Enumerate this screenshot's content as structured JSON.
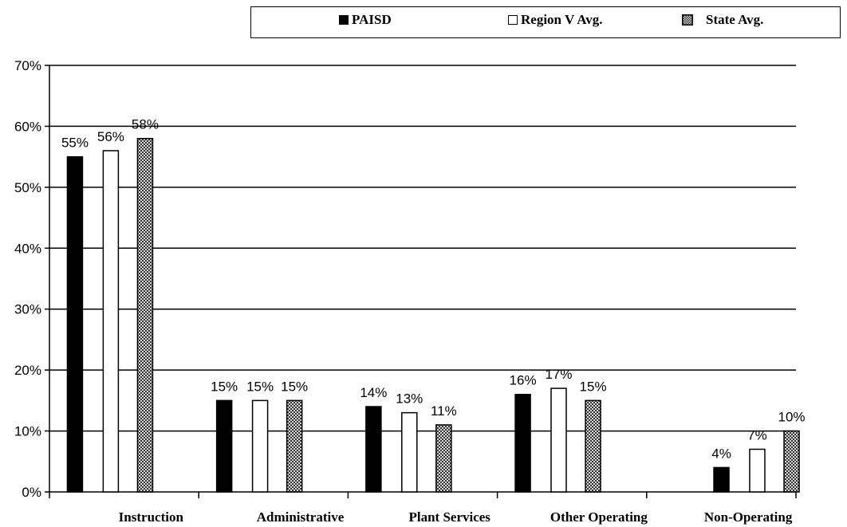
{
  "chart_data": {
    "type": "bar",
    "categories": [
      "Instruction",
      "Administrative",
      "Plant Services",
      "Other Operating",
      "Non-Operating"
    ],
    "series": [
      {
        "name": "PAISD",
        "values": [
          55,
          15,
          14,
          16,
          4
        ],
        "labels": [
          "55%",
          "15%",
          "14%",
          "16%",
          "4%"
        ],
        "color": "#000000",
        "pattern": "solid"
      },
      {
        "name": "Region V Avg.",
        "values": [
          56,
          15,
          13,
          17,
          7
        ],
        "labels": [
          "56%",
          "15%",
          "13%",
          "17%",
          "7%"
        ],
        "color": "#ffffff",
        "pattern": "outline"
      },
      {
        "name": "State Avg.",
        "values": [
          58,
          15,
          11,
          15,
          10
        ],
        "labels": [
          "58%",
          "15%",
          "11%",
          "15%",
          "10%"
        ],
        "color": "#888888",
        "pattern": "crosshatch"
      }
    ],
    "y_ticks": [
      "0%",
      "10%",
      "20%",
      "30%",
      "40%",
      "50%",
      "60%",
      "70%"
    ],
    "ylim": [
      0,
      70
    ],
    "grid": true,
    "legend_position": "top"
  }
}
